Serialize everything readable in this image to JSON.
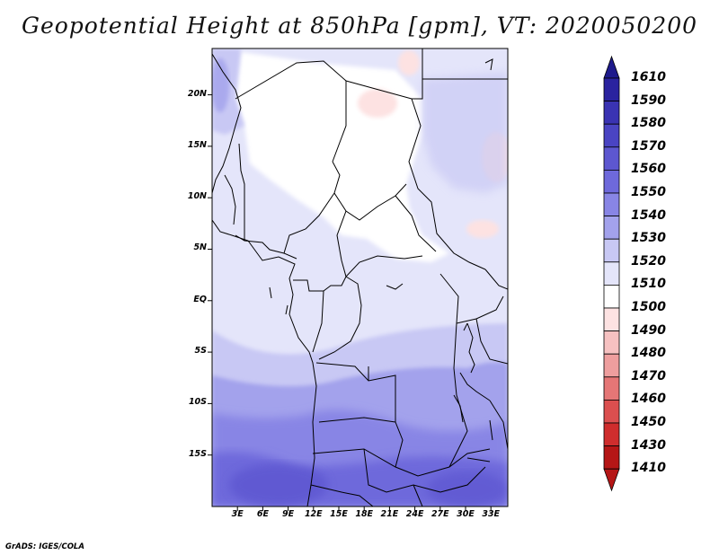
{
  "title": "Geopotential Height at 850hPa [gpm], VT: 2020050200",
  "credit": "GrADS: IGES/COLA",
  "map": {
    "variable": "Geopotential Height",
    "level": "850hPa",
    "units": "gpm",
    "valid_time": "2020050200",
    "lat_labels": [
      "20N",
      "15N",
      "10N",
      "5N",
      "EQ",
      "5S",
      "10S",
      "15S"
    ],
    "lat_values": [
      20,
      15,
      10,
      5,
      0,
      -5,
      -10,
      -15
    ],
    "lon_labels": [
      "3E",
      "6E",
      "9E",
      "12E",
      "15E",
      "18E",
      "21E",
      "24E",
      "27E",
      "30E",
      "33E"
    ],
    "lon_values": [
      3,
      6,
      9,
      12,
      15,
      18,
      21,
      24,
      27,
      30,
      33
    ],
    "lat_range": [
      -20,
      24.5
    ],
    "lon_range": [
      0,
      35
    ]
  },
  "colorbar": {
    "labels": [
      "1610",
      "1590",
      "1580",
      "1570",
      "1560",
      "1550",
      "1540",
      "1530",
      "1520",
      "1510",
      "1500",
      "1490",
      "1480",
      "1470",
      "1460",
      "1450",
      "1430",
      "1410"
    ],
    "colors": [
      "#1e1a8c",
      "#2a239f",
      "#3a33b3",
      "#4a44c3",
      "#5d57d0",
      "#6e69db",
      "#8885e5",
      "#a3a2ec",
      "#c8c8f4",
      "#e4e5fa",
      "#ffffff",
      "#fde2e2",
      "#f6c1c1",
      "#ee9e9e",
      "#e57676",
      "#db4f4f",
      "#cf2d2d",
      "#b51616"
    ]
  }
}
